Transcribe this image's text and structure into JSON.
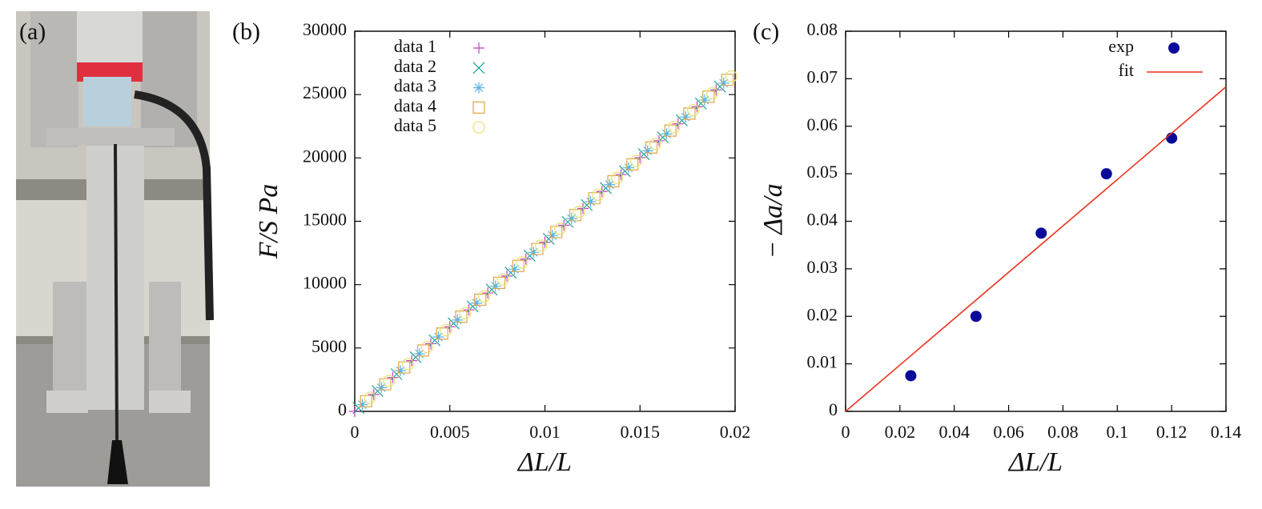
{
  "photo_label": "(a)",
  "chart_data": [
    {
      "type": "scatter",
      "label": "(b)",
      "xlabel": "ΔL/L",
      "ylabel": "F/S  Pa",
      "xlim": [
        0,
        0.02
      ],
      "xticks": [
        0,
        0.005,
        0.01,
        0.015,
        0.02
      ],
      "ylim": [
        0,
        30000
      ],
      "yticks": [
        0,
        5000,
        10000,
        15000,
        20000,
        25000,
        30000
      ],
      "legend": "upper left",
      "series": [
        {
          "name": "data 1",
          "color": "#c040c0",
          "marker": "plus",
          "x": [
            0,
            0.001,
            0.002,
            0.003,
            0.004,
            0.005,
            0.006,
            0.007,
            0.008,
            0.009,
            0.01,
            0.011,
            0.012,
            0.013,
            0.014,
            0.015,
            0.016,
            0.017,
            0.018,
            0.019
          ],
          "values": [
            0,
            1335,
            2670,
            4005,
            5340,
            6675,
            8010,
            9345,
            10680,
            12015,
            13350,
            14685,
            16020,
            17355,
            18690,
            20025,
            21360,
            22695,
            24030,
            25365
          ]
        },
        {
          "name": "data 2",
          "color": "#1fa090",
          "marker": "cross",
          "x": [
            0.0002,
            0.0012,
            0.0022,
            0.0032,
            0.0042,
            0.0052,
            0.0062,
            0.0072,
            0.0082,
            0.0092,
            0.0102,
            0.0112,
            0.0122,
            0.0132,
            0.0142,
            0.0152,
            0.0162,
            0.0172,
            0.0182,
            0.0192
          ],
          "values": [
            267,
            1602,
            2937,
            4272,
            5607,
            6942,
            8277,
            9612,
            10947,
            12282,
            13617,
            14952,
            16287,
            17622,
            18957,
            20292,
            21627,
            22962,
            24297,
            25632
          ]
        },
        {
          "name": "data 3",
          "color": "#56b4e9",
          "marker": "star",
          "x": [
            0.0004,
            0.0014,
            0.0024,
            0.0034,
            0.0044,
            0.0054,
            0.0064,
            0.0074,
            0.0084,
            0.0094,
            0.0104,
            0.0114,
            0.0124,
            0.0134,
            0.0144,
            0.0154,
            0.0164,
            0.0174,
            0.0184,
            0.0194
          ],
          "values": [
            534,
            1869,
            3204,
            4539,
            5874,
            7209,
            8544,
            9879,
            11214,
            12549,
            13884,
            15219,
            16554,
            17889,
            19224,
            20559,
            21894,
            23229,
            24564,
            25899
          ]
        },
        {
          "name": "data 4",
          "color": "#e0a848",
          "marker": "square",
          "x": [
            0.0006,
            0.0016,
            0.0026,
            0.0036,
            0.0046,
            0.0056,
            0.0066,
            0.0076,
            0.0086,
            0.0096,
            0.0106,
            0.0116,
            0.0126,
            0.0136,
            0.0146,
            0.0156,
            0.0166,
            0.0176,
            0.0186,
            0.0196
          ],
          "values": [
            801,
            2136,
            3471,
            4806,
            6141,
            7476,
            8811,
            10146,
            11481,
            12816,
            14151,
            15486,
            16821,
            18156,
            19491,
            20826,
            22161,
            23496,
            24831,
            26166
          ]
        },
        {
          "name": "data 5",
          "color": "#e8e070",
          "marker": "circle",
          "x": [
            0.0008,
            0.0018,
            0.0028,
            0.0038,
            0.0048,
            0.0058,
            0.0068,
            0.0078,
            0.0088,
            0.0098,
            0.0108,
            0.0118,
            0.0128,
            0.0138,
            0.0148,
            0.0158,
            0.0168,
            0.0178,
            0.0188,
            0.0198
          ],
          "values": [
            1068,
            2403,
            3738,
            5073,
            6408,
            7743,
            9078,
            10413,
            11748,
            13083,
            14418,
            15753,
            17088,
            18423,
            19758,
            21093,
            22428,
            23763,
            25098,
            26433
          ]
        }
      ]
    },
    {
      "type": "scatter",
      "label": "(c)",
      "xlabel": "ΔL/L",
      "ylabel": "− Δa/a",
      "xlim": [
        0,
        0.14
      ],
      "xticks": [
        0,
        0.02,
        0.04,
        0.06,
        0.08,
        0.1,
        0.12,
        0.14
      ],
      "ylim": [
        0,
        0.08
      ],
      "yticks": [
        0,
        0.01,
        0.02,
        0.03,
        0.04,
        0.05,
        0.06,
        0.07,
        0.08
      ],
      "legend": "upper right",
      "series": [
        {
          "name": "exp",
          "color": "#0a0a9a",
          "marker": "dot",
          "x": [
            0.024,
            0.048,
            0.072,
            0.096,
            0.12
          ],
          "values": [
            0.0075,
            0.02,
            0.0375,
            0.05,
            0.0575
          ]
        },
        {
          "name": "fit",
          "color": "#e8321e",
          "marker": "line",
          "x": [
            0,
            0.14
          ],
          "values": [
            0,
            0.0683
          ]
        }
      ]
    }
  ]
}
